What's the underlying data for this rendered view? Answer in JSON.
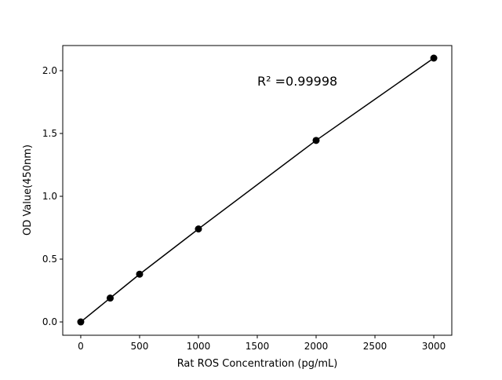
{
  "chart_data": {
    "type": "line",
    "title": "",
    "xlabel": "Rat ROS Concentration (pg/mL)",
    "ylabel": "OD Value(450nm)",
    "xlim": [
      -153,
      3153
    ],
    "ylim": [
      -0.106,
      2.2
    ],
    "xticks": [
      0,
      500,
      1000,
      1500,
      2000,
      2500,
      3000
    ],
    "yticks": [
      0.0,
      0.5,
      1.0,
      1.5,
      2.0
    ],
    "xtick_labels": [
      "0",
      "500",
      "1000",
      "1500",
      "2000",
      "2500",
      "3000"
    ],
    "ytick_labels": [
      "0.0",
      "0.5",
      "1.0",
      "1.5",
      "2.0"
    ],
    "grid": false,
    "series": [
      {
        "x": [
          0,
          250,
          500,
          1000,
          2000,
          3000
        ],
        "y": [
          0.0,
          0.19,
          0.38,
          0.74,
          1.445,
          2.1
        ],
        "color": "#000000",
        "marker": "circle"
      }
    ],
    "annotations": [
      {
        "text": "R² =0.99998",
        "x": 1500,
        "y": 1.88
      }
    ]
  }
}
